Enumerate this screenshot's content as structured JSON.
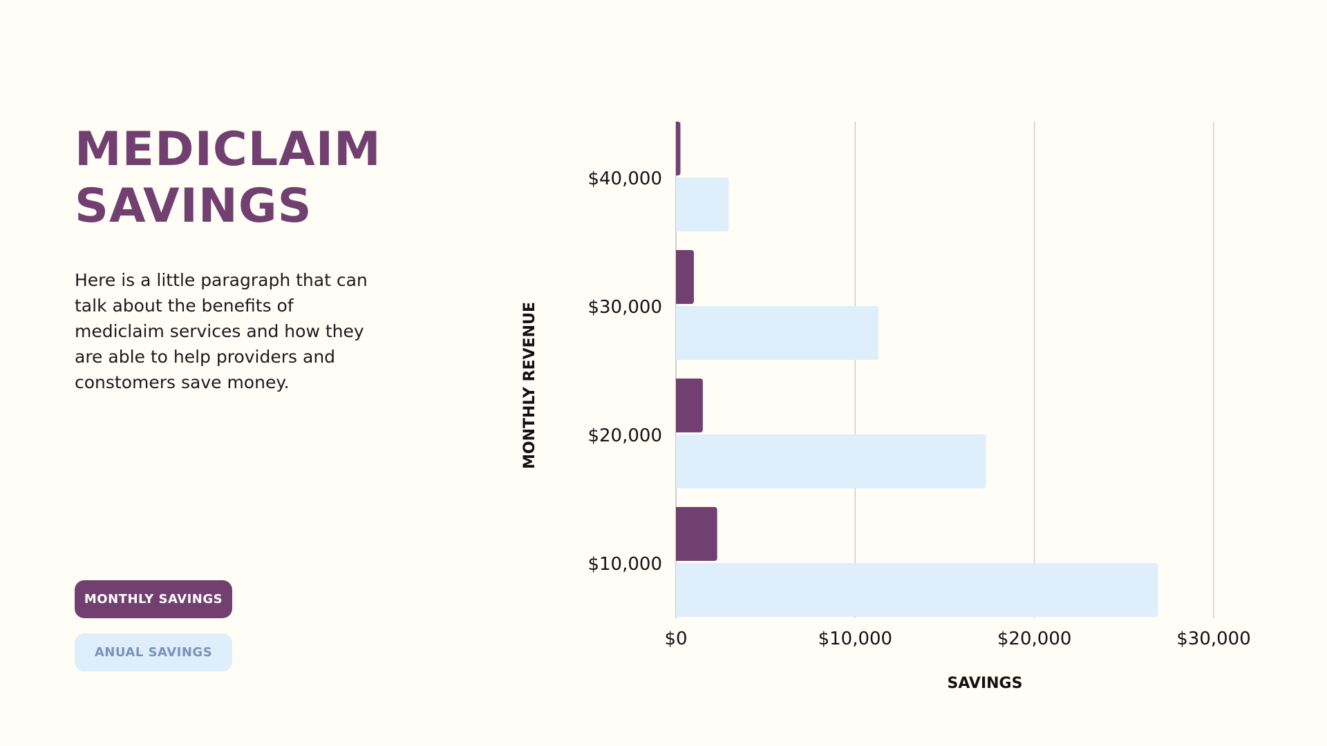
{
  "heading": {
    "line1": "MEDICLAIM",
    "line2": "SAVINGS"
  },
  "description": "Here is a little paragraph that can talk about the benefits of mediclaim services and how they are able to help providers and constomers save money.",
  "legend": {
    "monthly_label": "MONTHLY SAVINGS",
    "annual_label": "ANUAL  SAVINGS"
  },
  "colors": {
    "background": "#fffdf6",
    "monthly": "#714070",
    "annual": "#dfeefb",
    "gridline": "#cccccc"
  },
  "chart_data": {
    "type": "bar",
    "orientation": "horizontal",
    "title": "",
    "xlabel": "SAVINGS",
    "ylabel": "MONTHLY REVENUE",
    "categories": [
      "$40,000",
      "$30,000",
      "$20,000",
      "$10,000"
    ],
    "series": [
      {
        "name": "MONTHLY SAVINGS",
        "values": [
          250,
          1000,
          1500,
          2300
        ]
      },
      {
        "name": "ANUAL  SAVINGS",
        "values": [
          2950,
          11300,
          17300,
          26900
        ]
      }
    ],
    "xlim": [
      0,
      30000
    ],
    "xticks": [
      0,
      10000,
      20000,
      30000
    ],
    "xtick_labels": [
      "$0",
      "$10,000",
      "$20,000",
      "$30,000"
    ],
    "grid": true,
    "legend": "bottom-left"
  }
}
